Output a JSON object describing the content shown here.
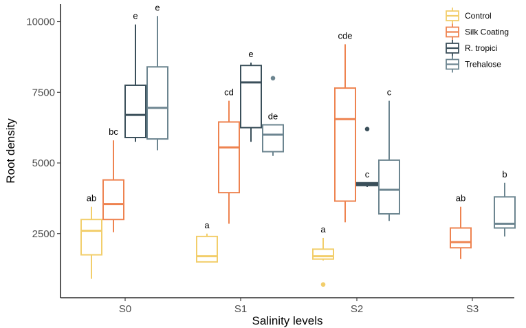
{
  "chart_data": {
    "type": "boxplot",
    "title": "",
    "xlabel": "Salinity levels",
    "ylabel": "Root density",
    "ylim": [
      0,
      10500
    ],
    "yticks": [
      2500,
      5000,
      7500,
      10000
    ],
    "ytick_labels": [
      "2500",
      "5000",
      "7500",
      "10000"
    ],
    "categories": [
      "S0",
      "S1",
      "S2",
      "S3"
    ],
    "legend": {
      "position": "top-right",
      "entries": [
        {
          "name": "Control",
          "color": "#F2CE6B"
        },
        {
          "name": "Silk Coating",
          "color": "#EE8350"
        },
        {
          "name": "R. tropici",
          "color": "#3A4F5A"
        },
        {
          "name": "Trehalose",
          "color": "#6C8590"
        }
      ]
    },
    "boxes": [
      {
        "group": "S0",
        "series": "Control",
        "min": 900,
        "q1": 1750,
        "median": 2600,
        "q3": 3000,
        "max": 3450,
        "outliers": [],
        "label": "ab"
      },
      {
        "group": "S0",
        "series": "Silk Coating",
        "min": 2550,
        "q1": 3000,
        "median": 3550,
        "q3": 4400,
        "max": 5800,
        "outliers": [],
        "label": "bc"
      },
      {
        "group": "S0",
        "series": "R. tropici",
        "min": 5750,
        "q1": 5900,
        "median": 6700,
        "q3": 7750,
        "max": 9900,
        "outliers": [],
        "label": "e"
      },
      {
        "group": "S0",
        "series": "Trehalose",
        "min": 5450,
        "q1": 5850,
        "median": 6950,
        "q3": 8400,
        "max": 10200,
        "outliers": [],
        "label": "e"
      },
      {
        "group": "S1",
        "series": "Control",
        "min": 1500,
        "q1": 1500,
        "median": 1700,
        "q3": 2400,
        "max": 2500,
        "outliers": [],
        "label": "a"
      },
      {
        "group": "S1",
        "series": "Silk Coating",
        "min": 2850,
        "q1": 3950,
        "median": 5550,
        "q3": 6450,
        "max": 7200,
        "outliers": [],
        "label": "cd"
      },
      {
        "group": "S1",
        "series": "R. tropici",
        "min": 5750,
        "q1": 6250,
        "median": 7850,
        "q3": 8450,
        "max": 8550,
        "outliers": [],
        "label": "e"
      },
      {
        "group": "S1",
        "series": "Trehalose",
        "min": 5250,
        "q1": 5400,
        "median": 6000,
        "q3": 6350,
        "max": 6350,
        "outliers": [
          8000
        ],
        "label": "de"
      },
      {
        "group": "S2",
        "series": "Control",
        "min": 1550,
        "q1": 1600,
        "median": 1700,
        "q3": 1950,
        "max": 2350,
        "outliers": [
          700
        ],
        "label": "a"
      },
      {
        "group": "S2",
        "series": "Silk Coating",
        "min": 2900,
        "q1": 3650,
        "median": 6550,
        "q3": 7650,
        "max": 9200,
        "outliers": [],
        "label": "cde"
      },
      {
        "group": "S2",
        "series": "R. tropici",
        "min": 4150,
        "q1": 4200,
        "median": 4250,
        "q3": 4300,
        "max": 4300,
        "outliers": [
          6200
        ],
        "label": "c"
      },
      {
        "group": "S2",
        "series": "Trehalose",
        "min": 2950,
        "q1": 3200,
        "median": 4050,
        "q3": 5100,
        "max": 7200,
        "outliers": [],
        "label": "c"
      },
      {
        "group": "S3",
        "series": "Silk Coating",
        "min": 1600,
        "q1": 2000,
        "median": 2200,
        "q3": 2700,
        "max": 3450,
        "outliers": [],
        "label": "ab"
      },
      {
        "group": "S3",
        "series": "Trehalose",
        "min": 2400,
        "q1": 2700,
        "median": 2850,
        "q3": 3800,
        "max": 4300,
        "outliers": [],
        "label": "b"
      }
    ]
  }
}
